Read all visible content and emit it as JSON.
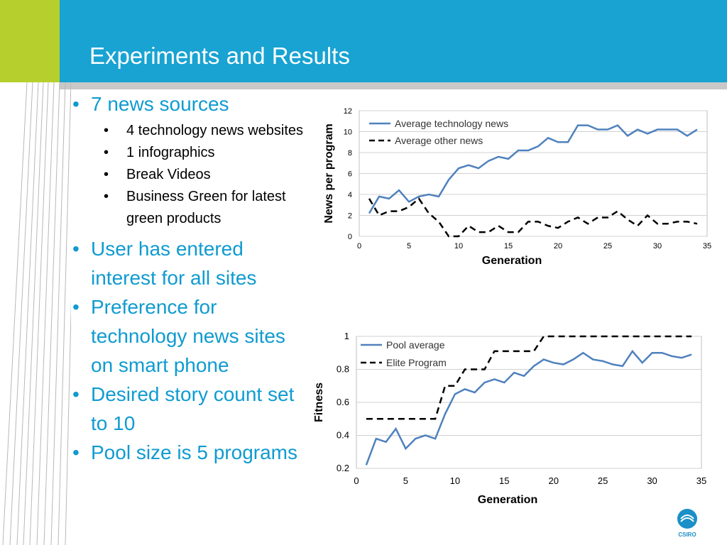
{
  "slide": {
    "title": "Experiments and Results",
    "accent_color": "#18a3d2",
    "green_color": "#b7cf2c",
    "bullet_color": "#0f9bd0"
  },
  "bullets": [
    {
      "text": "7 news sources",
      "sub": [
        "4 technology news websites",
        "1 infographics",
        "Break Videos",
        "Business Green for latest green products"
      ]
    },
    {
      "text": "User has entered interest for all sites",
      "sub": []
    },
    {
      "text": "Preference for technology news sites on smart phone",
      "sub": []
    },
    {
      "text": "Desired story count set to 10",
      "sub": []
    },
    {
      "text": "Pool size is 5 programs",
      "sub": []
    }
  ],
  "logo": {
    "text": "CSIRO",
    "icon": "csiro-logo-icon"
  },
  "chart_data": [
    {
      "type": "line",
      "xlabel": "Generation",
      "ylabel": "News per program",
      "xlim": [
        0,
        35
      ],
      "ylim": [
        0,
        12
      ],
      "xticks": [
        "0",
        "5",
        "10",
        "15",
        "20",
        "25",
        "30",
        "35"
      ],
      "yticks": [
        "0",
        "2",
        "4",
        "6",
        "8",
        "10",
        "12"
      ],
      "grid": true,
      "legend_position": "top-left",
      "x": [
        1,
        2,
        3,
        4,
        5,
        6,
        7,
        8,
        9,
        10,
        11,
        12,
        13,
        14,
        15,
        16,
        17,
        18,
        19,
        20,
        21,
        22,
        23,
        24,
        25,
        26,
        27,
        28,
        29,
        30,
        31,
        32,
        33,
        34
      ],
      "series": [
        {
          "name": "Average technology news",
          "color": "#4f81bd",
          "dash": "solid",
          "values": [
            2.2,
            3.8,
            3.6,
            4.4,
            3.3,
            3.8,
            4.0,
            3.8,
            5.4,
            6.5,
            6.8,
            6.5,
            7.2,
            7.6,
            7.4,
            8.2,
            8.2,
            8.6,
            9.4,
            9.0,
            9.0,
            10.6,
            10.6,
            10.2,
            10.2,
            10.6,
            9.6,
            10.2,
            9.8,
            10.2,
            10.2,
            10.2,
            9.6,
            10.2
          ]
        },
        {
          "name": "Average other news",
          "color": "#000000",
          "dash": "dashed",
          "values": [
            3.6,
            2.0,
            2.4,
            2.4,
            2.8,
            3.6,
            2.2,
            1.4,
            0.0,
            0.0,
            1.0,
            0.4,
            0.4,
            1.0,
            0.4,
            0.4,
            1.4,
            1.4,
            1.0,
            0.8,
            1.4,
            1.8,
            1.2,
            1.8,
            1.8,
            2.4,
            1.6,
            1.0,
            2.0,
            1.2,
            1.2,
            1.4,
            1.4,
            1.2
          ]
        }
      ]
    },
    {
      "type": "line",
      "xlabel": "Generation",
      "ylabel": "Fitness",
      "xlim": [
        0,
        35
      ],
      "ylim": [
        0.2,
        1.0
      ],
      "xticks": [
        "0",
        "5",
        "10",
        "15",
        "20",
        "25",
        "30",
        "35"
      ],
      "yticks": [
        "0.2",
        "0.4",
        "0.6",
        "0.8",
        "1"
      ],
      "grid": true,
      "legend_position": "top-left",
      "x": [
        1,
        2,
        3,
        4,
        5,
        6,
        7,
        8,
        9,
        10,
        11,
        12,
        13,
        14,
        15,
        16,
        17,
        18,
        19,
        20,
        21,
        22,
        23,
        24,
        25,
        26,
        27,
        28,
        29,
        30,
        31,
        32,
        33,
        34
      ],
      "series": [
        {
          "name": "Pool average",
          "color": "#4f81bd",
          "dash": "solid",
          "values": [
            0.22,
            0.38,
            0.36,
            0.44,
            0.32,
            0.38,
            0.4,
            0.38,
            0.53,
            0.65,
            0.68,
            0.66,
            0.72,
            0.74,
            0.72,
            0.78,
            0.76,
            0.82,
            0.86,
            0.84,
            0.83,
            0.86,
            0.9,
            0.86,
            0.85,
            0.83,
            0.82,
            0.91,
            0.84,
            0.9,
            0.9,
            0.88,
            0.87,
            0.89
          ]
        },
        {
          "name": "Elite Program",
          "color": "#000000",
          "dash": "dashed",
          "values": [
            0.5,
            0.5,
            0.5,
            0.5,
            0.5,
            0.5,
            0.5,
            0.5,
            0.7,
            0.7,
            0.8,
            0.8,
            0.8,
            0.91,
            0.91,
            0.91,
            0.91,
            0.91,
            1.0,
            1.0,
            1.0,
            1.0,
            1.0,
            1.0,
            1.0,
            1.0,
            1.0,
            1.0,
            1.0,
            1.0,
            1.0,
            1.0,
            1.0,
            1.0
          ]
        }
      ]
    }
  ]
}
